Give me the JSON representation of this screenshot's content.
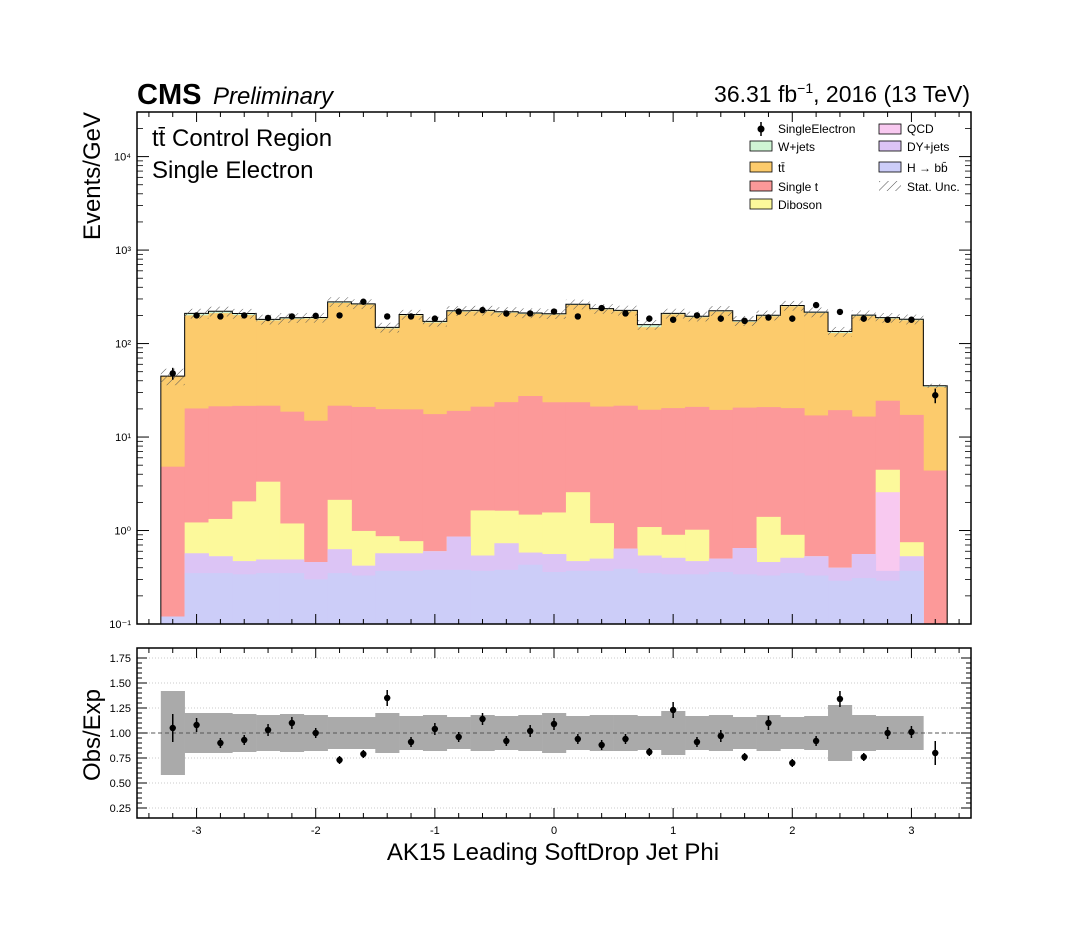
{
  "header": {
    "experiment": "CMS",
    "status": "Preliminary",
    "lumi_prefix": "36.31 fb",
    "lumi_exp": "−1",
    "lumi_suffix": ", 2016 (13 TeV)"
  },
  "region": {
    "line1": "tt̄ Control Region",
    "line2": "Single Electron"
  },
  "legend": {
    "data": "SingleElectron",
    "wjets": "W+jets",
    "ttbar": "tt̄",
    "singlet": "Single t",
    "diboson": "Diboson",
    "qcd": "QCD",
    "dyjets": "DY+jets",
    "hbb": "H → bb̄",
    "stat": "Stat. Unc."
  },
  "colors": {
    "hbb": "#cccdf8",
    "dyjets": "#dcc4f5",
    "qcd": "#f8c9f0",
    "diboson": "#fcf99b",
    "singlet": "#fc9999",
    "ttbar": "#fccb6c",
    "wjets": "#cff5d4",
    "band": "#aaaaaa"
  },
  "chart_data": [
    {
      "type": "bar",
      "stacked": true,
      "ylabel": "Events/GeV",
      "yscale": "log",
      "ylim": [
        0.1,
        30000
      ],
      "xlim": [
        -3.5,
        3.5
      ],
      "bin_edges": [
        -3.3,
        -3.1,
        -2.9,
        -2.7,
        -2.5,
        -2.3,
        -2.1,
        -1.9,
        -1.7,
        -1.5,
        -1.3,
        -1.1,
        -0.9,
        -0.7,
        -0.5,
        -0.3,
        -0.1,
        0.1,
        0.3,
        0.5,
        0.7,
        0.9,
        1.1,
        1.3,
        1.5,
        1.7,
        1.9,
        2.1,
        2.3,
        2.5,
        2.7,
        2.9,
        3.1,
        3.3
      ],
      "yticks": [
        "10⁻¹",
        "10⁰",
        "10¹",
        "10²",
        "10³",
        "10⁴"
      ],
      "series": [
        {
          "name": "H → bb̄",
          "key": "hbb",
          "values": [
            0.12,
            0.35,
            0.35,
            0.34,
            0.35,
            0.35,
            0.3,
            0.35,
            0.33,
            0.37,
            0.37,
            0.38,
            0.38,
            0.37,
            0.38,
            0.43,
            0.36,
            0.37,
            0.37,
            0.39,
            0.35,
            0.34,
            0.34,
            0.36,
            0.34,
            0.33,
            0.35,
            0.33,
            0.29,
            0.31,
            0.29,
            0.37,
            0.08
          ]
        },
        {
          "name": "DY+jets",
          "key": "dyjets",
          "values": [
            0.0,
            0.22,
            0.18,
            0.13,
            0.14,
            0.14,
            0.16,
            0.28,
            0.09,
            0.2,
            0.2,
            0.22,
            0.48,
            0.17,
            0.35,
            0.15,
            0.2,
            0.1,
            0.13,
            0.25,
            0.19,
            0.17,
            0.13,
            0.14,
            0.31,
            0.13,
            0.16,
            0.2,
            0.11,
            0.25,
            0.08,
            0.16,
            0.0
          ]
        },
        {
          "name": "QCD",
          "key": "qcd",
          "values": [
            0.0,
            0.0,
            0.0,
            0.0,
            0.0,
            0.0,
            0.0,
            0.0,
            0.0,
            0.0,
            0.0,
            0.0,
            0.0,
            0.0,
            0.0,
            0.0,
            0.0,
            0.0,
            0.0,
            0.0,
            0.0,
            0.0,
            0.0,
            0.0,
            0.0,
            0.0,
            0.0,
            0.0,
            0.0,
            0.0,
            2.2,
            0.0,
            0.0
          ]
        },
        {
          "name": "Diboson",
          "key": "diboson",
          "values": [
            0.0,
            0.65,
            0.8,
            1.58,
            2.84,
            0.7,
            0.0,
            1.5,
            0.57,
            0.3,
            0.2,
            0.0,
            0.0,
            1.1,
            0.9,
            0.9,
            1.0,
            2.1,
            0.7,
            0.0,
            0.55,
            0.39,
            0.55,
            0.0,
            0.0,
            0.94,
            0.39,
            0.0,
            0.0,
            0.0,
            1.9,
            0.22,
            0.0
          ]
        },
        {
          "name": "Single t",
          "key": "singlet",
          "values": [
            4.7,
            19.0,
            20.0,
            19.5,
            18.3,
            17.5,
            14.5,
            19.5,
            20.0,
            19.0,
            19.0,
            17.0,
            18.2,
            19.5,
            22.0,
            26.0,
            22.0,
            21.0,
            20.0,
            21.0,
            18.5,
            19.5,
            20.0,
            19.0,
            20.0,
            19.5,
            19.5,
            16.5,
            19.0,
            16.0,
            20.0,
            16.5,
            4.3
          ]
        },
        {
          "name": "tt̄",
          "key": "ttbar",
          "values": [
            40.0,
            180.0,
            190.0,
            180.0,
            155.0,
            165.0,
            170.0,
            250.0,
            240.0,
            125.0,
            180.0,
            150.0,
            200.0,
            200.0,
            190.0,
            180.0,
            180.0,
            235.0,
            210.0,
            200.0,
            130.0,
            185.0,
            170.0,
            200.0,
            150.0,
            175.0,
            230.0,
            195.0,
            110.0,
            180.0,
            160.0,
            160.0,
            30.0
          ]
        },
        {
          "name": "W+jets",
          "key": "wjets",
          "values": [
            0.0,
            10.0,
            10.0,
            8.0,
            5.0,
            5.0,
            5.0,
            8.0,
            5.0,
            4.0,
            5.0,
            5.0,
            5.0,
            5.0,
            5.0,
            5.0,
            5.0,
            5.0,
            5.0,
            5.0,
            10.0,
            5.0,
            5.0,
            5.0,
            5.0,
            5.0,
            5.0,
            5.0,
            5.0,
            5.0,
            5.0,
            5.0,
            1.0
          ]
        }
      ],
      "data": {
        "name": "SingleElectron",
        "values": [
          48,
          200,
          195,
          200,
          188,
          195,
          198,
          200,
          280,
          195,
          195,
          185,
          220,
          228,
          210,
          210,
          220,
          195,
          240,
          210,
          185,
          180,
          200,
          185,
          175,
          190,
          185,
          258,
          218,
          185,
          180,
          180,
          28
        ],
        "errors": [
          7,
          14,
          14,
          14,
          14,
          14,
          14,
          14,
          17,
          14,
          14,
          14,
          15,
          15,
          14,
          14,
          15,
          14,
          15,
          14,
          14,
          13,
          14,
          14,
          13,
          14,
          14,
          16,
          15,
          14,
          13,
          13,
          5
        ]
      },
      "stat_unc_rel": [
        0.2,
        0.12,
        0.12,
        0.12,
        0.12,
        0.12,
        0.12,
        0.12,
        0.12,
        0.12,
        0.12,
        0.12,
        0.12,
        0.12,
        0.12,
        0.12,
        0.12,
        0.12,
        0.12,
        0.12,
        0.12,
        0.12,
        0.12,
        0.12,
        0.12,
        0.12,
        0.12,
        0.12,
        0.12,
        0.12,
        0.12,
        0.12,
        0.05
      ]
    },
    {
      "type": "scatter",
      "ylabel": "Obs/Exp",
      "xlabel": "AK15 Leading SoftDrop Jet Phi",
      "ylim": [
        0.15,
        1.85
      ],
      "yticks": [
        "0.25",
        "0.50",
        "0.75",
        "1.00",
        "1.25",
        "1.50",
        "1.75"
      ],
      "xticks": [
        "-3",
        "-2",
        "-1",
        "0",
        "1",
        "2",
        "3"
      ],
      "x": [
        -3.2,
        -3.0,
        -2.8,
        -2.6,
        -2.4,
        -2.2,
        -2.0,
        -1.8,
        -1.6,
        -1.4,
        -1.2,
        -1.0,
        -0.8,
        -0.6,
        -0.4,
        -0.2,
        0.0,
        0.2,
        0.4,
        0.6,
        0.8,
        1.0,
        1.2,
        1.4,
        1.6,
        1.8,
        2.0,
        2.2,
        2.4,
        2.6,
        2.8,
        3.0,
        3.2
      ],
      "ratio": [
        1.05,
        1.08,
        0.9,
        0.93,
        1.03,
        1.1,
        1.0,
        0.73,
        0.79,
        1.35,
        0.91,
        1.04,
        0.96,
        1.14,
        0.92,
        1.02,
        1.09,
        0.94,
        0.88,
        0.94,
        0.81,
        1.23,
        0.91,
        0.97,
        0.76,
        1.1,
        0.7,
        0.92,
        1.34,
        0.76,
        1.0,
        1.01,
        0.8
      ],
      "ratio_err": [
        0.14,
        0.07,
        0.05,
        0.05,
        0.06,
        0.06,
        0.05,
        0.04,
        0.04,
        0.08,
        0.05,
        0.06,
        0.05,
        0.06,
        0.05,
        0.06,
        0.06,
        0.05,
        0.05,
        0.05,
        0.04,
        0.08,
        0.05,
        0.06,
        0.04,
        0.07,
        0.04,
        0.05,
        0.08,
        0.04,
        0.06,
        0.06,
        0.12
      ],
      "band_half": [
        0.42,
        0.2,
        0.2,
        0.19,
        0.18,
        0.19,
        0.18,
        0.16,
        0.16,
        0.2,
        0.17,
        0.18,
        0.16,
        0.18,
        0.17,
        0.18,
        0.2,
        0.17,
        0.18,
        0.18,
        0.17,
        0.22,
        0.17,
        0.18,
        0.16,
        0.18,
        0.16,
        0.17,
        0.28,
        0.18,
        0.17,
        0.17,
        0.0
      ]
    }
  ]
}
